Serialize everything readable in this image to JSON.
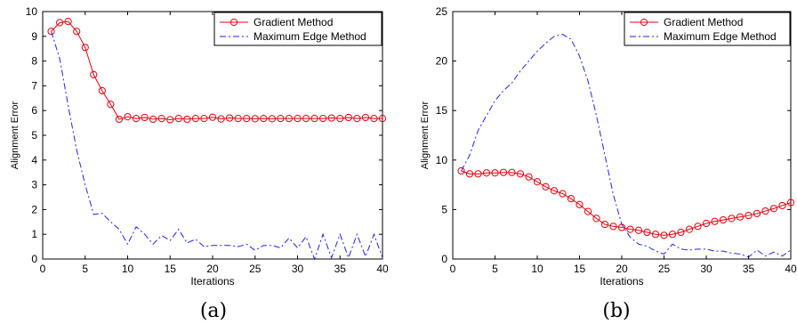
{
  "chart_data": [
    {
      "type": "line",
      "caption": "(a)",
      "xlabel": "Iterations",
      "ylabel": "Alignment Error",
      "xlim": [
        0,
        40
      ],
      "ylim": [
        0,
        10
      ],
      "xticks": [
        0,
        5,
        10,
        15,
        20,
        25,
        30,
        35,
        40
      ],
      "yticks": [
        0,
        1,
        2,
        3,
        4,
        5,
        6,
        7,
        8,
        9,
        10
      ],
      "grid": false,
      "legend_position": "top-right",
      "x": [
        1,
        2,
        3,
        4,
        5,
        6,
        7,
        8,
        9,
        10,
        11,
        12,
        13,
        14,
        15,
        16,
        17,
        18,
        19,
        20,
        21,
        22,
        23,
        24,
        25,
        26,
        27,
        28,
        29,
        30,
        31,
        32,
        33,
        34,
        35,
        36,
        37,
        38,
        39,
        40
      ],
      "series": [
        {
          "name": "Gradient Method",
          "color": "#e8000b",
          "style": "solid-circle-markers",
          "values": [
            9.2,
            9.55,
            9.6,
            9.2,
            8.55,
            7.45,
            6.8,
            6.25,
            5.65,
            5.75,
            5.68,
            5.72,
            5.65,
            5.68,
            5.63,
            5.68,
            5.65,
            5.68,
            5.68,
            5.73,
            5.66,
            5.7,
            5.68,
            5.68,
            5.67,
            5.68,
            5.67,
            5.68,
            5.68,
            5.68,
            5.68,
            5.68,
            5.68,
            5.7,
            5.68,
            5.72,
            5.68,
            5.72,
            5.68,
            5.68
          ]
        },
        {
          "name": "Maximum Edge Method",
          "color": "#1f1fff",
          "style": "dash-dot",
          "values": [
            9.2,
            8.1,
            6.2,
            4.4,
            3.0,
            1.8,
            1.85,
            1.5,
            1.2,
            0.6,
            1.3,
            1.0,
            0.6,
            0.95,
            0.75,
            1.2,
            0.65,
            0.8,
            0.5,
            0.55,
            0.55,
            0.55,
            0.5,
            0.6,
            0.35,
            0.55,
            0.55,
            0.45,
            0.85,
            0.45,
            0.9,
            0.0,
            1.0,
            0.05,
            1.0,
            0.05,
            1.0,
            0.1,
            1.0,
            0.05
          ]
        }
      ]
    },
    {
      "type": "line",
      "caption": "(b)",
      "xlabel": "Iterations",
      "ylabel": "Alignment Error",
      "xlim": [
        0,
        40
      ],
      "ylim": [
        0,
        25
      ],
      "xticks": [
        0,
        5,
        10,
        15,
        20,
        25,
        30,
        35,
        40
      ],
      "yticks": [
        0,
        5,
        10,
        15,
        20,
        25
      ],
      "grid": false,
      "legend_position": "top-right",
      "x": [
        1,
        2,
        3,
        4,
        5,
        6,
        7,
        8,
        9,
        10,
        11,
        12,
        13,
        14,
        15,
        16,
        17,
        18,
        19,
        20,
        21,
        22,
        23,
        24,
        25,
        26,
        27,
        28,
        29,
        30,
        31,
        32,
        33,
        34,
        35,
        36,
        37,
        38,
        39,
        40
      ],
      "series": [
        {
          "name": "Gradient Method",
          "color": "#e8000b",
          "style": "solid-circle-markers",
          "values": [
            8.9,
            8.6,
            8.6,
            8.7,
            8.7,
            8.75,
            8.75,
            8.6,
            8.3,
            7.8,
            7.3,
            6.9,
            6.6,
            6.1,
            5.5,
            4.8,
            4.1,
            3.5,
            3.3,
            3.2,
            3.0,
            2.9,
            2.7,
            2.5,
            2.4,
            2.5,
            2.7,
            3.0,
            3.3,
            3.6,
            3.8,
            3.95,
            4.1,
            4.25,
            4.4,
            4.6,
            4.85,
            5.1,
            5.4,
            5.7
          ]
        },
        {
          "name": "Maximum Edge Method",
          "color": "#1f1fff",
          "style": "dash-dot",
          "values": [
            8.9,
            10.5,
            13.0,
            14.5,
            16.0,
            17.0,
            17.8,
            19.0,
            20.0,
            21.0,
            21.8,
            22.5,
            22.7,
            22.2,
            20.5,
            18.0,
            14.5,
            10.5,
            6.5,
            3.5,
            2.2,
            1.5,
            1.3,
            0.8,
            0.5,
            1.5,
            1.0,
            0.9,
            1.0,
            1.0,
            0.8,
            0.8,
            0.6,
            0.5,
            0.2,
            0.9,
            0.3,
            0.7,
            0.3,
            0.9
          ]
        }
      ]
    }
  ]
}
